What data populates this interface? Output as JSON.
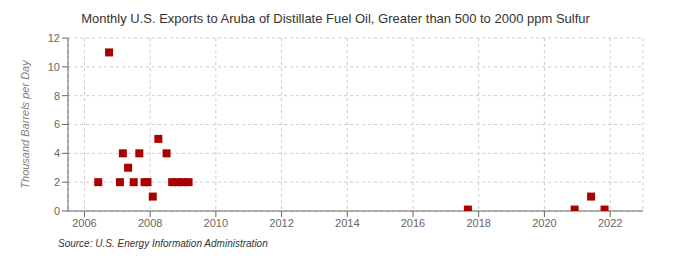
{
  "chart_data": {
    "type": "scatter",
    "title": "Monthly U.S. Exports to Aruba of Distillate Fuel Oil, Greater than 500 to 2000 ppm Sulfur",
    "y_label": "Thousand Barrels per Day",
    "source": "Source: U.S. Energy Information Administration",
    "x": [
      2006.42,
      2006.75,
      2007.08,
      2007.17,
      2007.33,
      2007.5,
      2007.67,
      2007.83,
      2007.92,
      2008.08,
      2008.25,
      2008.5,
      2008.67,
      2008.83,
      2009.0,
      2009.17,
      2017.67,
      2020.92,
      2021.42,
      2021.83
    ],
    "values": [
      2,
      11,
      2,
      4,
      3,
      2,
      4,
      2,
      2,
      1,
      5,
      4,
      2,
      2,
      2,
      2,
      0.1,
      0.1,
      1,
      0.1
    ],
    "color": "#aa0000",
    "marker": "square",
    "xlim": [
      2005.5,
      2023.0
    ],
    "ylim": [
      0,
      12
    ],
    "xticks": [
      2006,
      2008,
      2010,
      2012,
      2014,
      2016,
      2018,
      2020,
      2022
    ],
    "yticks": [
      0,
      2,
      4,
      6,
      8,
      10,
      12
    ],
    "grid": true
  }
}
